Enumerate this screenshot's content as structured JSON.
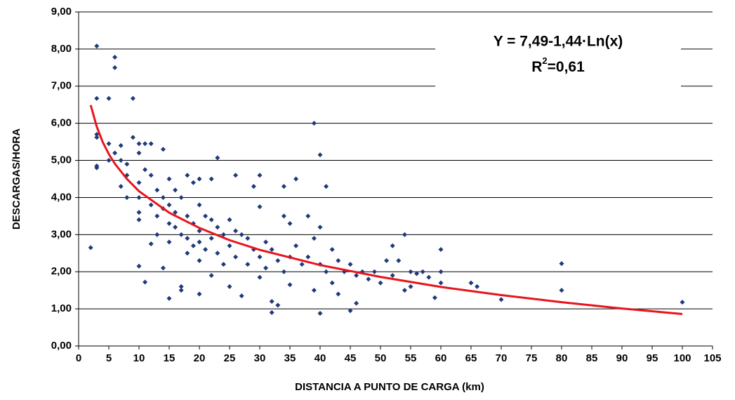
{
  "chart_data": {
    "type": "scatter",
    "x_label": "DISTANCIA A PUNTO DE CARGA (km)",
    "y_label": "DESCARGAS/HORA",
    "equation": "Y = 7,49-1,44·Ln(x)",
    "r2": {
      "base": "R",
      "sup": "2",
      "rest": "=0,61"
    },
    "color": "#1f3a7a",
    "grid": true,
    "xlim": [
      0,
      105
    ],
    "ylim": [
      0,
      9
    ],
    "xticks": [
      0,
      5,
      10,
      15,
      20,
      25,
      30,
      35,
      40,
      45,
      50,
      55,
      60,
      65,
      70,
      75,
      80,
      85,
      90,
      95,
      100,
      105
    ],
    "yticks": [
      {
        "value": 0,
        "label": "0,00"
      },
      {
        "value": 1,
        "label": "1,00"
      },
      {
        "value": 2,
        "label": "2,00"
      },
      {
        "value": 3,
        "label": "3,00"
      },
      {
        "value": 4,
        "label": "4,00"
      },
      {
        "value": 5,
        "label": "5,00"
      },
      {
        "value": 6,
        "label": "6,00"
      },
      {
        "value": 7,
        "label": "7,00"
      },
      {
        "value": 8,
        "label": "8,00"
      },
      {
        "value": 9,
        "label": "9,00"
      }
    ],
    "x": [
      2,
      3,
      3,
      3,
      3,
      3,
      3,
      5,
      5,
      5,
      6,
      6,
      6,
      7,
      7,
      7,
      8,
      8,
      8,
      9,
      9,
      10,
      10,
      10,
      10,
      10,
      10,
      10,
      11,
      11,
      11,
      12,
      12,
      12,
      12,
      13,
      13,
      13,
      14,
      14,
      14,
      14,
      15,
      15,
      15,
      15,
      15,
      16,
      16,
      16,
      17,
      17,
      17,
      17,
      18,
      18,
      18,
      18,
      19,
      19,
      19,
      20,
      20,
      20,
      20,
      20,
      20,
      21,
      21,
      22,
      22,
      22,
      22,
      23,
      23,
      23,
      24,
      24,
      25,
      25,
      25,
      26,
      26,
      26,
      27,
      27,
      28,
      28,
      29,
      29,
      30,
      30,
      30,
      30,
      31,
      31,
      32,
      32,
      32,
      33,
      33,
      34,
      34,
      34,
      35,
      35,
      35,
      36,
      36,
      37,
      38,
      38,
      39,
      39,
      39,
      40,
      40,
      40,
      40,
      41,
      41,
      42,
      42,
      43,
      43,
      44,
      45,
      45,
      46,
      46,
      47,
      48,
      49,
      50,
      51,
      52,
      52,
      53,
      54,
      54,
      55,
      55,
      56,
      57,
      58,
      59,
      60,
      60,
      60,
      65,
      66,
      70,
      80,
      80,
      100
    ],
    "values": [
      2.65,
      8.08,
      6.67,
      5.7,
      5.62,
      4.85,
      4.8,
      6.67,
      5.45,
      5.0,
      7.78,
      7.5,
      5.2,
      5.4,
      5.0,
      4.3,
      4.9,
      4.6,
      4.0,
      6.67,
      5.62,
      5.45,
      5.2,
      4.4,
      4.0,
      3.6,
      3.4,
      2.15,
      5.45,
      4.75,
      1.72,
      5.45,
      4.6,
      3.8,
      2.75,
      4.2,
      3.5,
      3.0,
      5.3,
      4.0,
      3.7,
      2.1,
      4.5,
      3.8,
      3.3,
      2.8,
      1.28,
      4.2,
      3.6,
      3.2,
      4.0,
      3.0,
      1.6,
      1.5,
      4.6,
      3.5,
      2.9,
      2.5,
      4.4,
      3.3,
      2.7,
      4.5,
      3.8,
      3.1,
      2.8,
      2.3,
      1.4,
      3.5,
      2.6,
      4.5,
      3.4,
      2.9,
      1.9,
      5.07,
      3.2,
      2.5,
      3.0,
      2.2,
      3.4,
      2.7,
      1.6,
      4.6,
      3.1,
      2.4,
      3.0,
      1.35,
      2.9,
      2.2,
      4.3,
      2.6,
      4.6,
      3.75,
      2.4,
      1.85,
      2.8,
      2.1,
      2.6,
      1.2,
      0.9,
      2.3,
      1.1,
      4.3,
      3.5,
      2.0,
      3.3,
      2.4,
      1.65,
      4.5,
      2.7,
      2.2,
      3.5,
      2.4,
      6.0,
      2.9,
      1.5,
      5.15,
      3.2,
      2.2,
      0.88,
      4.3,
      2.0,
      2.6,
      1.7,
      2.3,
      1.4,
      2.0,
      2.2,
      0.95,
      1.9,
      1.15,
      2.0,
      1.8,
      2.0,
      1.7,
      2.3,
      2.7,
      1.9,
      2.3,
      3.0,
      1.5,
      2.0,
      1.6,
      1.95,
      2.0,
      1.85,
      1.3,
      2.6,
      2.0,
      1.7,
      1.7,
      1.6,
      1.25,
      2.22,
      1.5,
      1.18
    ],
    "trendline": {
      "color": "#e8141c",
      "x": [
        2,
        3,
        4,
        5,
        6,
        8,
        10,
        15,
        20,
        25,
        30,
        40,
        50,
        60,
        70,
        80,
        90,
        100
      ],
      "values": [
        6.49,
        5.91,
        5.49,
        5.17,
        4.91,
        4.5,
        4.17,
        3.59,
        3.18,
        2.85,
        2.59,
        2.18,
        1.86,
        1.59,
        1.37,
        1.18,
        1.01,
        0.86
      ]
    }
  }
}
